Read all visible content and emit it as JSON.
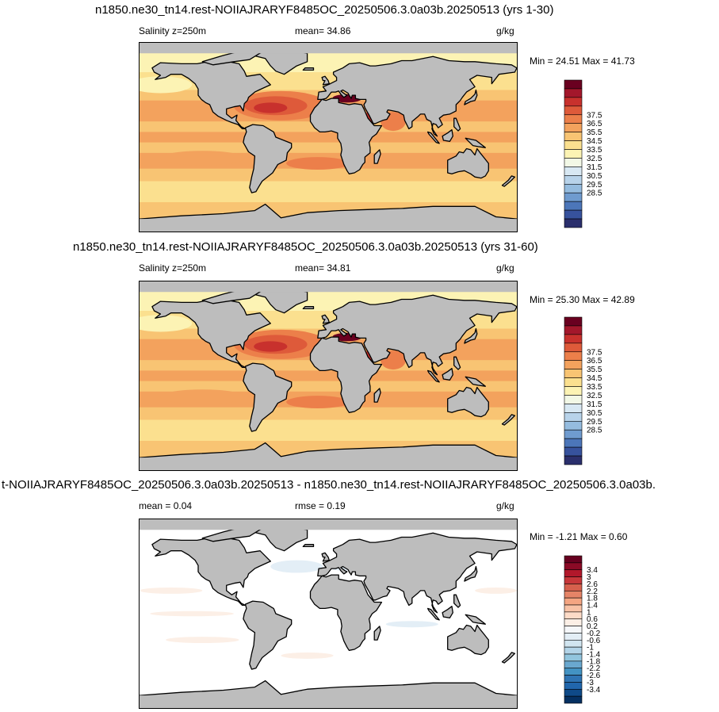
{
  "panels": [
    {
      "title": "n1850.ne30_tn14.rest-NOIIAJRARYF8485OC_20250506.3.0a03b.20250513 (yrs 1-30)",
      "left_label": "Salinity z=250m",
      "center_label": "mean=  34.86",
      "units": "g/kg",
      "minmax": "Min =  24.51 Max =  41.73"
    },
    {
      "title": "n1850.ne30_tn14.rest-NOIIAJRARYF8485OC_20250506.3.0a03b.20250513 (yrs 31-60)",
      "left_label": "Salinity z=250m",
      "center_label": "mean=  34.81",
      "units": "g/kg",
      "minmax": "Min =  25.30 Max =  42.89"
    },
    {
      "title": "t-NOIIAJRARYF8485OC_20250506.3.0a03b.20250513 - n1850.ne30_tn14.rest-NOIIAJRARYF8485OC_20250506.3.0a03b.",
      "left_label": "mean =   0.04",
      "center_label": "rmse =   0.19",
      "units": "g/kg",
      "minmax": "Min =  -1.21 Max =   0.60"
    }
  ],
  "chart_data": [
    {
      "type": "heatmap",
      "title": "n1850.ne30_tn14.rest-NOIIAJRARYF8485OC_20250506.3.0a03b.20250513 (yrs 1-30)",
      "variable": "Salinity z=250m",
      "units": "g/kg",
      "mean": 34.86,
      "min": 24.51,
      "max": 41.73,
      "colorbar": {
        "tick_labels": [
          "37.5",
          "36.5",
          "35.5",
          "34.5",
          "33.5",
          "32.5",
          "31.5",
          "30.5",
          "29.5",
          "28.5"
        ],
        "colors": [
          "#6a0020",
          "#a3172b",
          "#c8312d",
          "#de5a3a",
          "#ec7f4a",
          "#f3a25d",
          "#f8c473",
          "#fbe08f",
          "#fcf3b4",
          "#f2f8e6",
          "#d8e8f3",
          "#b8d3ea",
          "#95bcdf",
          "#6f9bcf",
          "#4c76b9",
          "#37529d",
          "#2a2f6c"
        ]
      }
    },
    {
      "type": "heatmap",
      "title": "n1850.ne30_tn14.rest-NOIIAJRARYF8485OC_20250506.3.0a03b.20250513 (yrs 31-60)",
      "variable": "Salinity z=250m",
      "units": "g/kg",
      "mean": 34.81,
      "min": 25.3,
      "max": 42.89,
      "colorbar": {
        "tick_labels": [
          "37.5",
          "36.5",
          "35.5",
          "34.5",
          "33.5",
          "32.5",
          "31.5",
          "30.5",
          "29.5",
          "28.5"
        ],
        "colors": [
          "#6a0020",
          "#a3172b",
          "#c8312d",
          "#de5a3a",
          "#ec7f4a",
          "#f3a25d",
          "#f8c473",
          "#fbe08f",
          "#fcf3b4",
          "#f2f8e6",
          "#d8e8f3",
          "#b8d3ea",
          "#95bcdf",
          "#6f9bcf",
          "#4c76b9",
          "#37529d",
          "#2a2f6c"
        ]
      }
    },
    {
      "type": "heatmap",
      "title": "t-NOIIAJRARYF8485OC_20250506.3.0a03b.20250513 - n1850.ne30_tn14.rest-NOIIAJRARYF8485OC_20250506.3.0a03b.",
      "units": "g/kg",
      "mean": 0.04,
      "rmse": 0.19,
      "min": -1.21,
      "max": 0.6,
      "colorbar": {
        "tick_labels": [
          "3.4",
          "3",
          "2.6",
          "2.2",
          "1.8",
          "1.4",
          "1",
          "0.6",
          "0.2",
          "-0.2",
          "-0.6",
          "-1",
          "-1.4",
          "-1.8",
          "-2.2",
          "-2.6",
          "-3",
          "-3.4"
        ],
        "colors": [
          "#67001f",
          "#8b0a26",
          "#b2182b",
          "#c7373a",
          "#d6604d",
          "#e58467",
          "#f4a582",
          "#f8c2a6",
          "#fddbc7",
          "#fcefe6",
          "#f5f7fa",
          "#e3eef6",
          "#d1e5f0",
          "#b3d4e8",
          "#92c5de",
          "#6aa8cf",
          "#4393c3",
          "#2f74b3",
          "#2166ac",
          "#0f4a88",
          "#053061"
        ]
      }
    }
  ]
}
